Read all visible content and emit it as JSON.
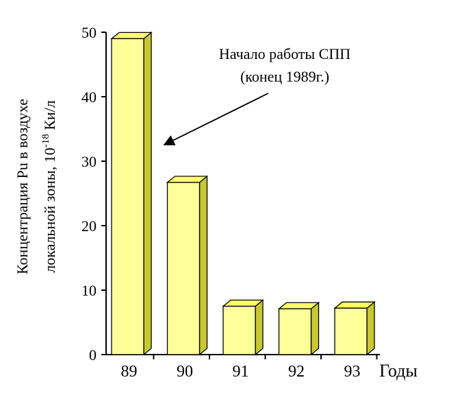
{
  "chart_data": {
    "type": "bar",
    "categories": [
      "89",
      "90",
      "91",
      "92",
      "93"
    ],
    "values": [
      49,
      26.7,
      7.5,
      7.1,
      7.2
    ],
    "ylim": [
      0,
      50
    ],
    "yticks": [
      0,
      10,
      20,
      30,
      40,
      50
    ],
    "ylabel_line1": "Концентрация Pu в воздухе",
    "ylabel_line2_prefix": "локальной зоны, 10",
    "ylabel_line2_exp": "-18",
    "ylabel_line2_suffix": " Ки/л",
    "xlabel": "Годы",
    "annotation_line1": "Начало работы СПП",
    "annotation_line2": "(конец 1989г.)",
    "grid": false,
    "colors": {
      "bar_front": "#ffff99",
      "bar_side": "#c8c832",
      "bar_top": "#ffff66",
      "stroke": "#000000"
    }
  }
}
